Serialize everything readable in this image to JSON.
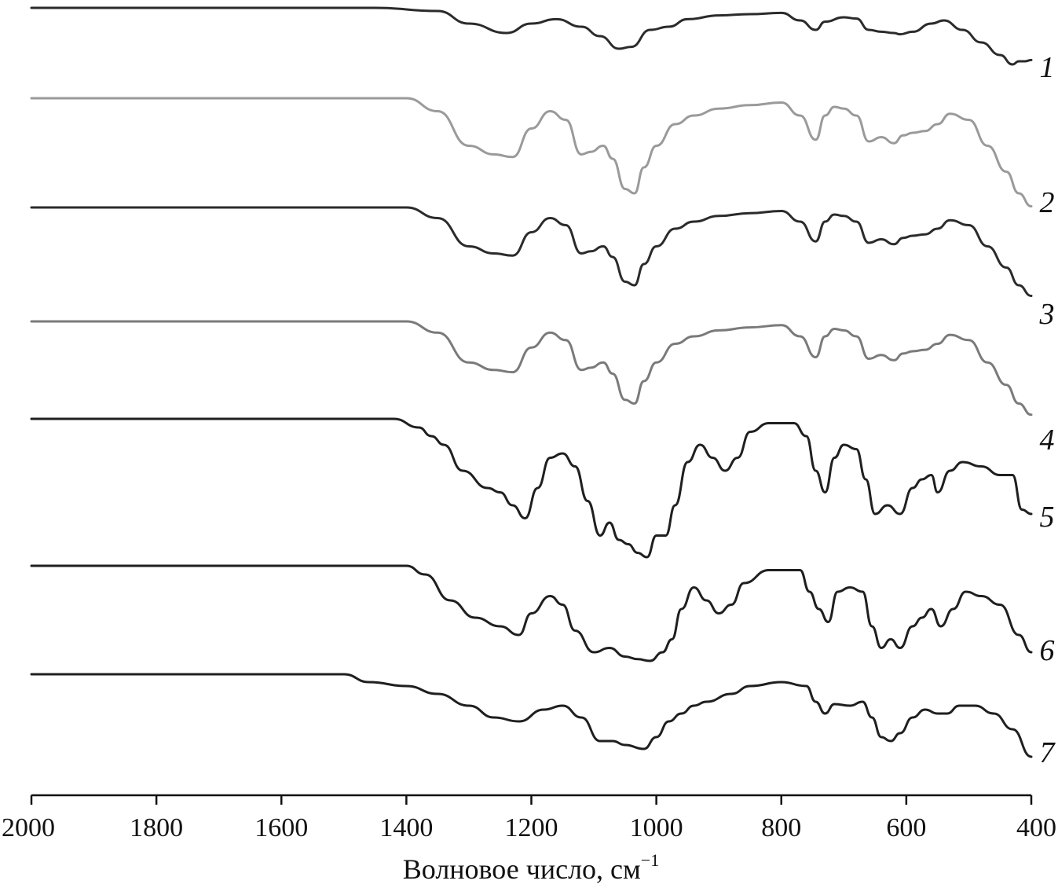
{
  "chart_data": {
    "type": "line",
    "title": "",
    "xlabel": "Волновое число, см",
    "xlabel_sup": "−1",
    "ylabel": "",
    "xlim": [
      2000,
      400
    ],
    "x_reversed": true,
    "x_ticks": [
      2000,
      1800,
      1600,
      1400,
      1200,
      1000,
      800,
      600,
      400
    ],
    "grid": false,
    "stacked_offsets": true,
    "series": [
      {
        "label": "1",
        "color": "#2b2b2b",
        "points": [
          [
            2000,
            0.0
          ],
          [
            1800,
            0.0
          ],
          [
            1600,
            0.0
          ],
          [
            1450,
            0.0
          ],
          [
            1350,
            -0.05
          ],
          [
            1300,
            -0.25
          ],
          [
            1240,
            -0.4
          ],
          [
            1200,
            -0.25
          ],
          [
            1160,
            -0.18
          ],
          [
            1120,
            -0.3
          ],
          [
            1090,
            -0.45
          ],
          [
            1060,
            -0.65
          ],
          [
            1040,
            -0.62
          ],
          [
            1010,
            -0.35
          ],
          [
            980,
            -0.3
          ],
          [
            950,
            -0.18
          ],
          [
            900,
            -0.12
          ],
          [
            850,
            -0.1
          ],
          [
            800,
            -0.08
          ],
          [
            770,
            -0.2
          ],
          [
            745,
            -0.35
          ],
          [
            730,
            -0.22
          ],
          [
            700,
            -0.15
          ],
          [
            680,
            -0.17
          ],
          [
            660,
            -0.35
          ],
          [
            640,
            -0.38
          ],
          [
            620,
            -0.4
          ],
          [
            610,
            -0.42
          ],
          [
            590,
            -0.38
          ],
          [
            560,
            -0.25
          ],
          [
            540,
            -0.2
          ],
          [
            510,
            -0.35
          ],
          [
            480,
            -0.55
          ],
          [
            450,
            -0.75
          ],
          [
            430,
            -0.9
          ],
          [
            420,
            -0.85
          ],
          [
            410,
            -0.85
          ],
          [
            400,
            -0.83
          ]
        ]
      },
      {
        "label": "2",
        "color": "#9a9a9a",
        "points": [
          [
            2000,
            0.0
          ],
          [
            1800,
            0.0
          ],
          [
            1600,
            0.0
          ],
          [
            1400,
            0.0
          ],
          [
            1350,
            -0.15
          ],
          [
            1300,
            -0.55
          ],
          [
            1260,
            -0.65
          ],
          [
            1230,
            -0.68
          ],
          [
            1200,
            -0.35
          ],
          [
            1170,
            -0.15
          ],
          [
            1145,
            -0.25
          ],
          [
            1120,
            -0.65
          ],
          [
            1105,
            -0.62
          ],
          [
            1085,
            -0.55
          ],
          [
            1070,
            -0.7
          ],
          [
            1050,
            -1.05
          ],
          [
            1035,
            -1.1
          ],
          [
            1020,
            -0.8
          ],
          [
            1000,
            -0.55
          ],
          [
            970,
            -0.3
          ],
          [
            940,
            -0.2
          ],
          [
            900,
            -0.12
          ],
          [
            850,
            -0.08
          ],
          [
            800,
            -0.05
          ],
          [
            770,
            -0.2
          ],
          [
            745,
            -0.48
          ],
          [
            730,
            -0.2
          ],
          [
            715,
            -0.1
          ],
          [
            700,
            -0.12
          ],
          [
            680,
            -0.2
          ],
          [
            660,
            -0.5
          ],
          [
            640,
            -0.45
          ],
          [
            620,
            -0.52
          ],
          [
            605,
            -0.43
          ],
          [
            590,
            -0.4
          ],
          [
            570,
            -0.38
          ],
          [
            550,
            -0.3
          ],
          [
            530,
            -0.18
          ],
          [
            500,
            -0.25
          ],
          [
            470,
            -0.55
          ],
          [
            440,
            -0.85
          ],
          [
            420,
            -1.1
          ],
          [
            400,
            -1.25
          ]
        ]
      },
      {
        "label": "3",
        "color": "#2b2b2b",
        "points": [
          [
            2000,
            0.0
          ],
          [
            1800,
            0.0
          ],
          [
            1600,
            0.0
          ],
          [
            1400,
            0.0
          ],
          [
            1350,
            -0.15
          ],
          [
            1300,
            -0.55
          ],
          [
            1260,
            -0.65
          ],
          [
            1230,
            -0.68
          ],
          [
            1200,
            -0.35
          ],
          [
            1170,
            -0.15
          ],
          [
            1145,
            -0.25
          ],
          [
            1120,
            -0.65
          ],
          [
            1105,
            -0.62
          ],
          [
            1085,
            -0.55
          ],
          [
            1070,
            -0.7
          ],
          [
            1050,
            -1.05
          ],
          [
            1035,
            -1.1
          ],
          [
            1020,
            -0.8
          ],
          [
            1000,
            -0.55
          ],
          [
            970,
            -0.3
          ],
          [
            940,
            -0.2
          ],
          [
            900,
            -0.12
          ],
          [
            850,
            -0.08
          ],
          [
            800,
            -0.05
          ],
          [
            770,
            -0.2
          ],
          [
            745,
            -0.48
          ],
          [
            730,
            -0.2
          ],
          [
            715,
            -0.1
          ],
          [
            700,
            -0.12
          ],
          [
            680,
            -0.2
          ],
          [
            660,
            -0.5
          ],
          [
            640,
            -0.45
          ],
          [
            620,
            -0.52
          ],
          [
            605,
            -0.43
          ],
          [
            590,
            -0.4
          ],
          [
            570,
            -0.38
          ],
          [
            550,
            -0.3
          ],
          [
            530,
            -0.18
          ],
          [
            500,
            -0.25
          ],
          [
            470,
            -0.55
          ],
          [
            440,
            -0.85
          ],
          [
            420,
            -1.1
          ],
          [
            400,
            -1.25
          ]
        ]
      },
      {
        "label": "4",
        "color": "#7a7a7a",
        "points": [
          [
            2000,
            0.0
          ],
          [
            1800,
            0.0
          ],
          [
            1600,
            0.0
          ],
          [
            1400,
            0.0
          ],
          [
            1350,
            -0.15
          ],
          [
            1300,
            -0.55
          ],
          [
            1260,
            -0.65
          ],
          [
            1230,
            -0.68
          ],
          [
            1200,
            -0.35
          ],
          [
            1170,
            -0.15
          ],
          [
            1145,
            -0.25
          ],
          [
            1120,
            -0.65
          ],
          [
            1105,
            -0.62
          ],
          [
            1085,
            -0.55
          ],
          [
            1070,
            -0.7
          ],
          [
            1050,
            -1.05
          ],
          [
            1035,
            -1.1
          ],
          [
            1020,
            -0.8
          ],
          [
            1000,
            -0.55
          ],
          [
            970,
            -0.3
          ],
          [
            940,
            -0.2
          ],
          [
            900,
            -0.12
          ],
          [
            850,
            -0.08
          ],
          [
            800,
            -0.05
          ],
          [
            770,
            -0.2
          ],
          [
            745,
            -0.48
          ],
          [
            730,
            -0.2
          ],
          [
            715,
            -0.1
          ],
          [
            700,
            -0.12
          ],
          [
            680,
            -0.2
          ],
          [
            660,
            -0.5
          ],
          [
            640,
            -0.45
          ],
          [
            620,
            -0.52
          ],
          [
            605,
            -0.43
          ],
          [
            590,
            -0.4
          ],
          [
            570,
            -0.38
          ],
          [
            550,
            -0.3
          ],
          [
            530,
            -0.18
          ],
          [
            500,
            -0.25
          ],
          [
            470,
            -0.55
          ],
          [
            440,
            -0.85
          ],
          [
            420,
            -1.1
          ],
          [
            400,
            -1.25
          ]
        ]
      },
      {
        "label": "5",
        "color": "#1f1f1f",
        "points": [
          [
            2000,
            0.0
          ],
          [
            1800,
            0.0
          ],
          [
            1600,
            0.0
          ],
          [
            1420,
            0.0
          ],
          [
            1380,
            -0.1
          ],
          [
            1360,
            -0.2
          ],
          [
            1340,
            -0.3
          ],
          [
            1310,
            -0.6
          ],
          [
            1270,
            -0.8
          ],
          [
            1250,
            -0.85
          ],
          [
            1230,
            -1.0
          ],
          [
            1210,
            -1.15
          ],
          [
            1190,
            -0.8
          ],
          [
            1170,
            -0.45
          ],
          [
            1150,
            -0.4
          ],
          [
            1130,
            -0.55
          ],
          [
            1110,
            -0.95
          ],
          [
            1090,
            -1.35
          ],
          [
            1075,
            -1.2
          ],
          [
            1060,
            -1.4
          ],
          [
            1045,
            -1.45
          ],
          [
            1030,
            -1.55
          ],
          [
            1015,
            -1.6
          ],
          [
            1000,
            -1.35
          ],
          [
            985,
            -1.35
          ],
          [
            970,
            -1.0
          ],
          [
            950,
            -0.5
          ],
          [
            930,
            -0.3
          ],
          [
            910,
            -0.45
          ],
          [
            890,
            -0.6
          ],
          [
            870,
            -0.45
          ],
          [
            850,
            -0.15
          ],
          [
            820,
            -0.05
          ],
          [
            780,
            -0.05
          ],
          [
            760,
            -0.2
          ],
          [
            745,
            -0.6
          ],
          [
            730,
            -0.85
          ],
          [
            715,
            -0.45
          ],
          [
            700,
            -0.3
          ],
          [
            680,
            -0.35
          ],
          [
            665,
            -0.7
          ],
          [
            650,
            -1.1
          ],
          [
            630,
            -1.0
          ],
          [
            610,
            -1.1
          ],
          [
            590,
            -0.8
          ],
          [
            575,
            -0.7
          ],
          [
            560,
            -0.65
          ],
          [
            550,
            -0.85
          ],
          [
            530,
            -0.6
          ],
          [
            510,
            -0.5
          ],
          [
            480,
            -0.55
          ],
          [
            450,
            -0.65
          ],
          [
            430,
            -0.65
          ],
          [
            415,
            -1.05
          ],
          [
            400,
            -1.1
          ]
        ]
      },
      {
        "label": "6",
        "color": "#1f1f1f",
        "points": [
          [
            2000,
            0.0
          ],
          [
            1800,
            0.0
          ],
          [
            1600,
            0.0
          ],
          [
            1400,
            0.0
          ],
          [
            1370,
            -0.1
          ],
          [
            1330,
            -0.4
          ],
          [
            1290,
            -0.6
          ],
          [
            1250,
            -0.7
          ],
          [
            1220,
            -0.8
          ],
          [
            1200,
            -0.55
          ],
          [
            1170,
            -0.35
          ],
          [
            1150,
            -0.45
          ],
          [
            1130,
            -0.75
          ],
          [
            1100,
            -1.0
          ],
          [
            1075,
            -0.95
          ],
          [
            1050,
            -1.05
          ],
          [
            1030,
            -1.08
          ],
          [
            1010,
            -1.1
          ],
          [
            990,
            -1.0
          ],
          [
            975,
            -0.85
          ],
          [
            960,
            -0.5
          ],
          [
            940,
            -0.25
          ],
          [
            920,
            -0.4
          ],
          [
            900,
            -0.55
          ],
          [
            880,
            -0.45
          ],
          [
            860,
            -0.2
          ],
          [
            820,
            -0.05
          ],
          [
            770,
            -0.05
          ],
          [
            755,
            -0.3
          ],
          [
            740,
            -0.5
          ],
          [
            725,
            -0.65
          ],
          [
            710,
            -0.3
          ],
          [
            690,
            -0.25
          ],
          [
            670,
            -0.3
          ],
          [
            655,
            -0.7
          ],
          [
            640,
            -0.95
          ],
          [
            625,
            -0.85
          ],
          [
            610,
            -0.95
          ],
          [
            590,
            -0.7
          ],
          [
            575,
            -0.6
          ],
          [
            560,
            -0.5
          ],
          [
            545,
            -0.7
          ],
          [
            525,
            -0.5
          ],
          [
            505,
            -0.3
          ],
          [
            480,
            -0.35
          ],
          [
            450,
            -0.45
          ],
          [
            420,
            -0.8
          ],
          [
            400,
            -1.0
          ]
        ]
      },
      {
        "label": "7",
        "color": "#1f1f1f",
        "points": [
          [
            2000,
            0.0
          ],
          [
            1800,
            0.0
          ],
          [
            1600,
            0.0
          ],
          [
            1500,
            0.0
          ],
          [
            1460,
            -0.1
          ],
          [
            1400,
            -0.15
          ],
          [
            1350,
            -0.25
          ],
          [
            1300,
            -0.4
          ],
          [
            1260,
            -0.55
          ],
          [
            1220,
            -0.6
          ],
          [
            1180,
            -0.45
          ],
          [
            1150,
            -0.4
          ],
          [
            1120,
            -0.55
          ],
          [
            1090,
            -0.85
          ],
          [
            1070,
            -0.85
          ],
          [
            1050,
            -0.9
          ],
          [
            1020,
            -0.95
          ],
          [
            1000,
            -0.8
          ],
          [
            980,
            -0.6
          ],
          [
            960,
            -0.5
          ],
          [
            940,
            -0.4
          ],
          [
            920,
            -0.35
          ],
          [
            880,
            -0.25
          ],
          [
            850,
            -0.15
          ],
          [
            800,
            -0.1
          ],
          [
            760,
            -0.15
          ],
          [
            745,
            -0.35
          ],
          [
            730,
            -0.5
          ],
          [
            715,
            -0.38
          ],
          [
            690,
            -0.4
          ],
          [
            670,
            -0.35
          ],
          [
            655,
            -0.55
          ],
          [
            640,
            -0.8
          ],
          [
            625,
            -0.85
          ],
          [
            610,
            -0.75
          ],
          [
            590,
            -0.55
          ],
          [
            570,
            -0.45
          ],
          [
            550,
            -0.5
          ],
          [
            535,
            -0.5
          ],
          [
            515,
            -0.4
          ],
          [
            490,
            -0.4
          ],
          [
            460,
            -0.5
          ],
          [
            430,
            -0.7
          ],
          [
            400,
            -1.05
          ]
        ]
      }
    ]
  }
}
